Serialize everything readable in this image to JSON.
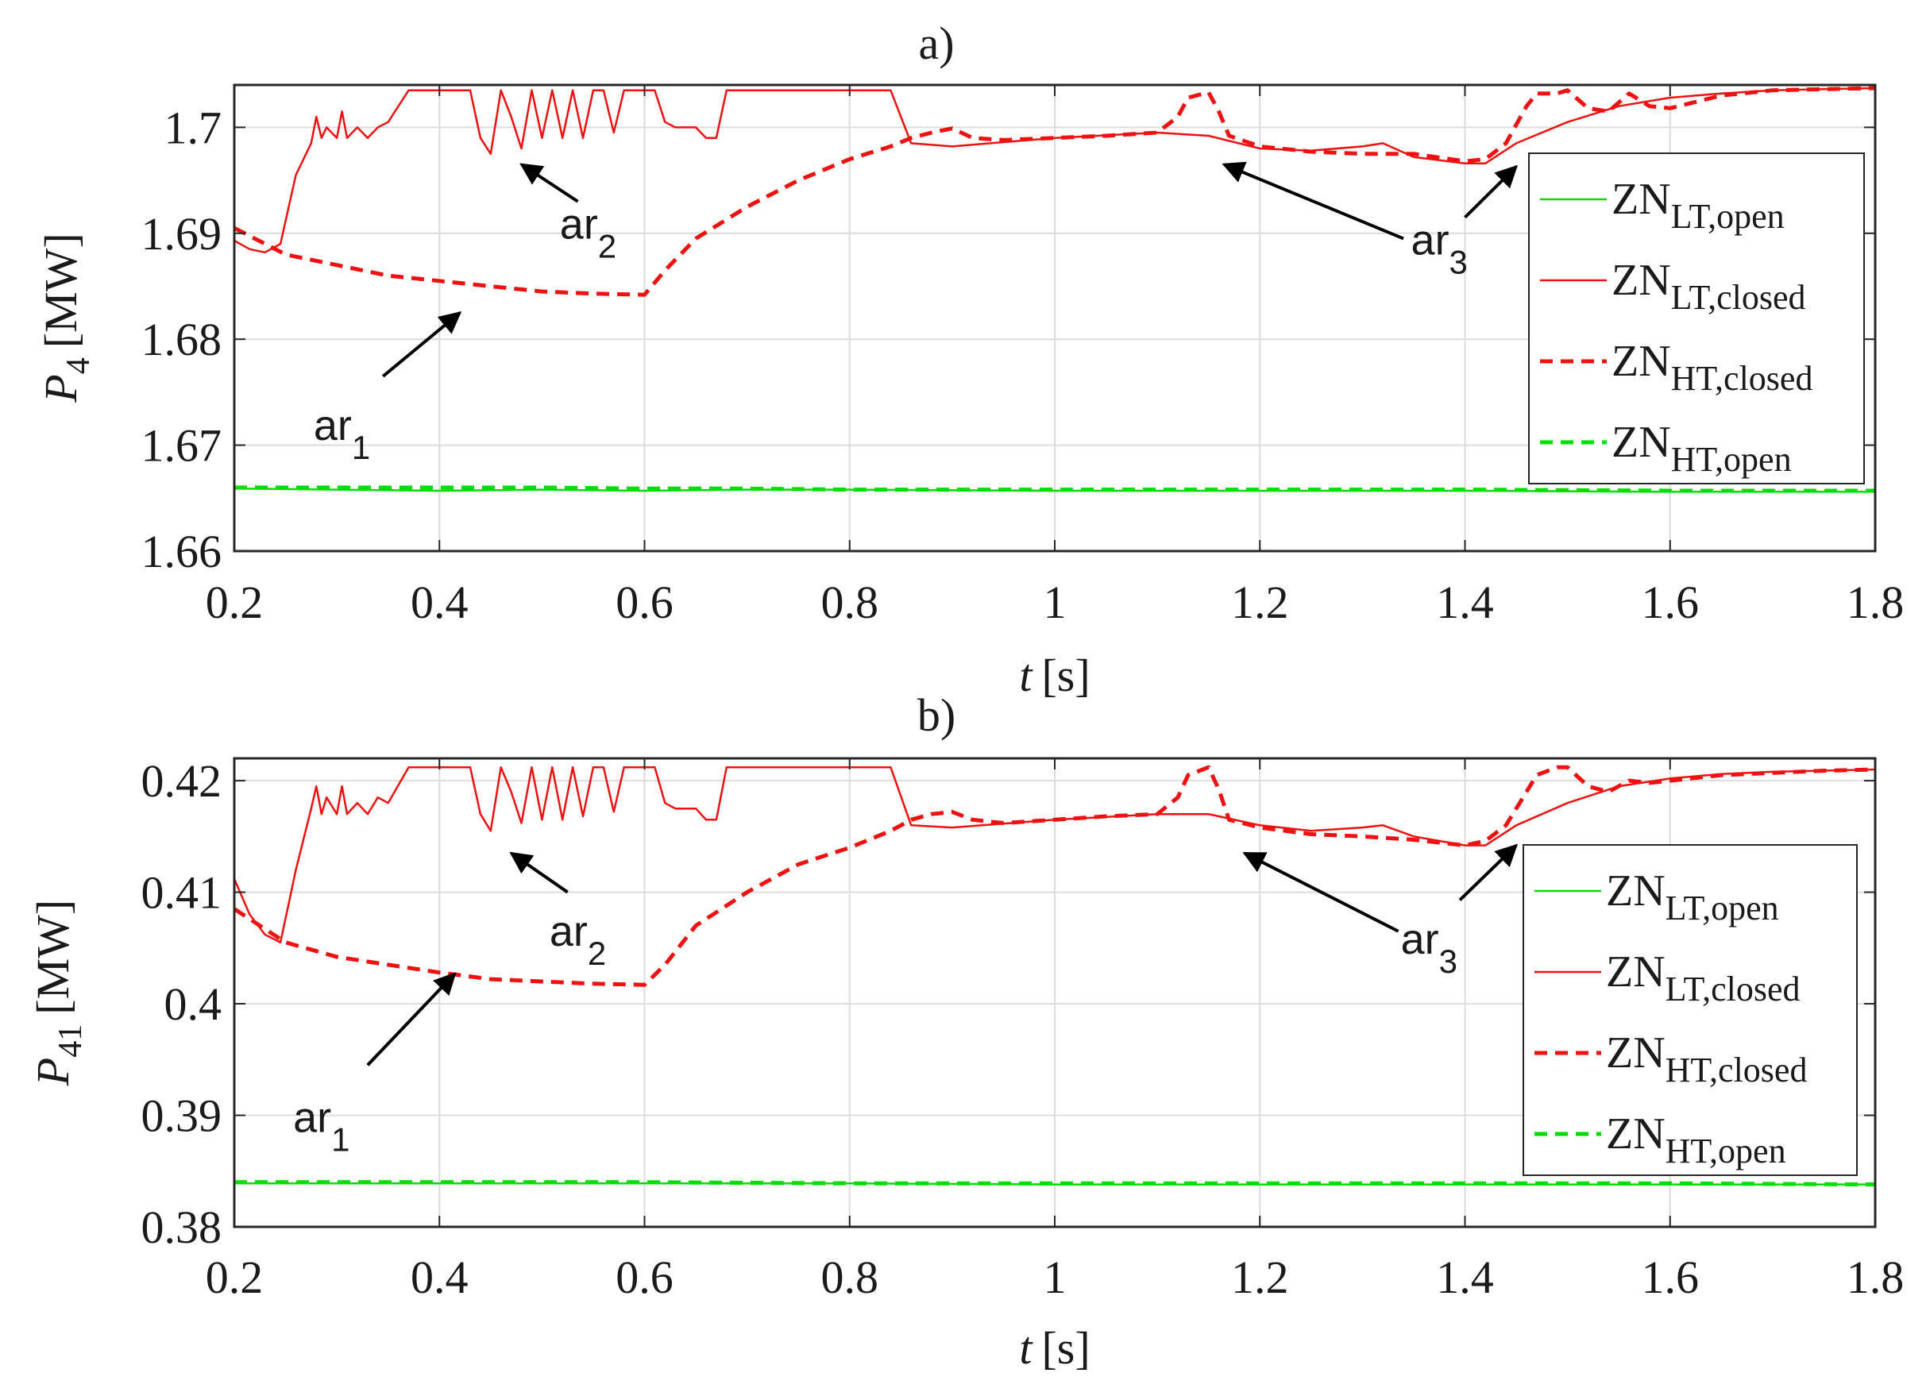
{
  "chart_data": [
    {
      "type": "line",
      "panel_label": "a)",
      "title": "a)",
      "ylabel_base": "P",
      "ylabel_sub": "4",
      "ylabel_unit": "[MW]",
      "xlabel_var": "t",
      "xlabel_unit": "[s]",
      "xlim": [
        0.2,
        1.8
      ],
      "ylim": [
        1.66,
        1.704
      ],
      "xticks": [
        0.2,
        0.4,
        0.6,
        0.8,
        1,
        1.2,
        1.4,
        1.6,
        1.8
      ],
      "xtick_labels": [
        "0.2",
        "0.4",
        "0.6",
        "0.8",
        "1",
        "1.2",
        "1.4",
        "1.6",
        "1.8"
      ],
      "yticks": [
        1.66,
        1.67,
        1.68,
        1.69,
        1.7
      ],
      "ytick_labels": [
        "1.66",
        "1.67",
        "1.68",
        "1.69",
        "1.7"
      ],
      "grid": true,
      "legend_position": "right",
      "series": [
        {
          "name": "ZN_LT,open",
          "label_base": "ZN",
          "label_sub": "LT,open",
          "color": "#00dd00",
          "style": "solid",
          "x": [
            0.2,
            0.3,
            0.4,
            0.5,
            0.6,
            0.7,
            0.8,
            1.0,
            1.2,
            1.4,
            1.6,
            1.8
          ],
          "y": [
            1.6659,
            1.6658,
            1.6657,
            1.6658,
            1.6657,
            1.6658,
            1.6658,
            1.6657,
            1.6657,
            1.6657,
            1.6656,
            1.6656
          ]
        },
        {
          "name": "ZN_LT,closed",
          "label_base": "ZN",
          "label_sub": "LT,closed",
          "color": "#ee1111",
          "style": "solid",
          "x": [
            0.2,
            0.215,
            0.23,
            0.245,
            0.26,
            0.275,
            0.28,
            0.285,
            0.29,
            0.3,
            0.305,
            0.31,
            0.32,
            0.33,
            0.34,
            0.35,
            0.37,
            0.39,
            0.4,
            0.43,
            0.44,
            0.45,
            0.46,
            0.47,
            0.48,
            0.49,
            0.5,
            0.51,
            0.52,
            0.53,
            0.54,
            0.55,
            0.56,
            0.57,
            0.58,
            0.59,
            0.6,
            0.61,
            0.62,
            0.63,
            0.65,
            0.66,
            0.67,
            0.68,
            0.7,
            0.72,
            0.74,
            0.76,
            0.78,
            0.8,
            0.82,
            0.84,
            0.86,
            0.9,
            1.0,
            1.1,
            1.15,
            1.2,
            1.25,
            1.3,
            1.32,
            1.35,
            1.4,
            1.42,
            1.45,
            1.5,
            1.55,
            1.6,
            1.65,
            1.7,
            1.75,
            1.8
          ],
          "y": [
            1.6893,
            1.6885,
            1.6882,
            1.689,
            1.6955,
            1.6985,
            1.701,
            1.699,
            1.7,
            1.699,
            1.7015,
            1.699,
            1.7,
            1.699,
            1.7,
            1.7005,
            1.7035,
            1.7035,
            1.7035,
            1.7035,
            1.699,
            1.6975,
            1.7035,
            1.701,
            1.698,
            1.7035,
            1.699,
            1.7035,
            1.699,
            1.7035,
            1.699,
            1.7035,
            1.7035,
            1.6995,
            1.7035,
            1.7035,
            1.7035,
            1.7035,
            1.7005,
            1.7,
            1.7,
            1.699,
            1.699,
            1.7035,
            1.7035,
            1.7035,
            1.7035,
            1.7035,
            1.7035,
            1.7035,
            1.7035,
            1.7035,
            1.6985,
            1.6982,
            1.699,
            1.6995,
            1.6992,
            1.698,
            1.6978,
            1.6982,
            1.6985,
            1.6972,
            1.6966,
            1.6966,
            1.6985,
            1.7005,
            1.702,
            1.7028,
            1.7032,
            1.7035,
            1.7036,
            1.7037
          ]
        },
        {
          "name": "ZN_HT,closed",
          "label_base": "ZN",
          "label_sub": "HT,closed",
          "color": "#ee1111",
          "style": "dashed",
          "x": [
            0.2,
            0.25,
            0.3,
            0.35,
            0.4,
            0.45,
            0.5,
            0.55,
            0.6,
            0.62,
            0.65,
            0.7,
            0.75,
            0.8,
            0.84,
            0.86,
            0.88,
            0.9,
            0.92,
            0.95,
            1.0,
            1.05,
            1.1,
            1.12,
            1.13,
            1.15,
            1.16,
            1.17,
            1.2,
            1.25,
            1.3,
            1.35,
            1.4,
            1.42,
            1.44,
            1.46,
            1.47,
            1.49,
            1.5,
            1.52,
            1.54,
            1.56,
            1.58,
            1.6,
            1.65,
            1.7,
            1.75,
            1.8
          ],
          "y": [
            1.6905,
            1.688,
            1.687,
            1.686,
            1.6855,
            1.685,
            1.6845,
            1.6843,
            1.6842,
            1.6865,
            1.6895,
            1.6925,
            1.695,
            1.697,
            1.6982,
            1.699,
            1.6995,
            1.6999,
            1.699,
            1.6988,
            1.699,
            1.6992,
            1.6995,
            1.701,
            1.7028,
            1.7033,
            1.7015,
            1.6992,
            1.6982,
            1.6977,
            1.6975,
            1.6975,
            1.6968,
            1.697,
            1.6985,
            1.702,
            1.7032,
            1.7032,
            1.7035,
            1.7018,
            1.7015,
            1.7032,
            1.702,
            1.7018,
            1.703,
            1.7035,
            1.7036,
            1.7037
          ]
        },
        {
          "name": "ZN_HT,open",
          "label_base": "ZN",
          "label_sub": "HT,open",
          "color": "#00dd00",
          "style": "dashed",
          "x": [
            0.2,
            0.3,
            0.4,
            0.5,
            0.6,
            0.7,
            0.8,
            1.0,
            1.2,
            1.4,
            1.6,
            1.8
          ],
          "y": [
            1.666,
            1.666,
            1.666,
            1.666,
            1.6659,
            1.6659,
            1.6658,
            1.6658,
            1.6658,
            1.6658,
            1.6657,
            1.6657
          ]
        }
      ],
      "annotations": [
        {
          "id": "ar1",
          "text": "ar",
          "sub": "1",
          "text_at": [
            0.305,
            1.6705
          ],
          "arrow_from": [
            0.345,
            1.6765
          ],
          "arrow_to": [
            0.42,
            1.6825
          ]
        },
        {
          "id": "ar2",
          "text": "ar",
          "sub": "2",
          "text_at": [
            0.545,
            1.6895
          ],
          "arrow_from": [
            0.535,
            1.693
          ],
          "arrow_to": [
            0.48,
            1.6965
          ]
        },
        {
          "id": "ar3",
          "text": "ar",
          "sub": "3",
          "text_at": [
            1.375,
            1.688
          ],
          "arrow_from": [
            1.34,
            1.6895
          ],
          "arrow_to": [
            1.165,
            1.6965
          ]
        },
        {
          "id": "ar3b",
          "arrow_from": [
            1.4,
            1.6915
          ],
          "arrow_to": [
            1.45,
            1.6963
          ]
        }
      ]
    },
    {
      "type": "line",
      "panel_label": "b)",
      "title": "b)",
      "ylabel_base": "P",
      "ylabel_sub": "41",
      "ylabel_unit": "[MW]",
      "xlabel_var": "t",
      "xlabel_unit": "[s]",
      "xlim": [
        0.2,
        1.8
      ],
      "ylim": [
        0.38,
        0.422
      ],
      "xticks": [
        0.2,
        0.4,
        0.6,
        0.8,
        1,
        1.2,
        1.4,
        1.6,
        1.8
      ],
      "xtick_labels": [
        "0.2",
        "0.4",
        "0.6",
        "0.8",
        "1",
        "1.2",
        "1.4",
        "1.6",
        "1.8"
      ],
      "yticks": [
        0.38,
        0.39,
        0.4,
        0.41,
        0.42
      ],
      "ytick_labels": [
        "0.38",
        "0.39",
        "0.4",
        "0.41",
        "0.42"
      ],
      "grid": true,
      "legend_position": "right",
      "series": [
        {
          "name": "ZN_LT,open",
          "label_base": "ZN",
          "label_sub": "LT,open",
          "color": "#00dd00",
          "style": "solid",
          "x": [
            0.2,
            0.4,
            0.6,
            0.8,
            1.0,
            1.2,
            1.4,
            1.6,
            1.8
          ],
          "y": [
            0.3839,
            0.3839,
            0.3839,
            0.3839,
            0.3838,
            0.3838,
            0.3838,
            0.3838,
            0.3838
          ]
        },
        {
          "name": "ZN_LT,closed",
          "label_base": "ZN",
          "label_sub": "LT,closed",
          "color": "#ee1111",
          "style": "solid",
          "x": [
            0.2,
            0.215,
            0.23,
            0.245,
            0.26,
            0.275,
            0.28,
            0.285,
            0.29,
            0.3,
            0.305,
            0.31,
            0.32,
            0.33,
            0.34,
            0.35,
            0.37,
            0.39,
            0.4,
            0.43,
            0.44,
            0.45,
            0.46,
            0.47,
            0.48,
            0.49,
            0.5,
            0.51,
            0.52,
            0.53,
            0.54,
            0.55,
            0.56,
            0.57,
            0.58,
            0.59,
            0.6,
            0.61,
            0.62,
            0.63,
            0.65,
            0.66,
            0.67,
            0.68,
            0.7,
            0.72,
            0.74,
            0.76,
            0.78,
            0.8,
            0.82,
            0.84,
            0.86,
            0.9,
            1.0,
            1.1,
            1.15,
            1.2,
            1.25,
            1.3,
            1.32,
            1.35,
            1.4,
            1.42,
            1.45,
            1.5,
            1.55,
            1.6,
            1.65,
            1.7,
            1.75,
            1.8
          ],
          "y": [
            0.4112,
            0.408,
            0.4062,
            0.4055,
            0.412,
            0.4175,
            0.4195,
            0.417,
            0.4185,
            0.417,
            0.4195,
            0.417,
            0.418,
            0.417,
            0.4185,
            0.418,
            0.4212,
            0.4212,
            0.4212,
            0.4212,
            0.417,
            0.4155,
            0.4212,
            0.419,
            0.4162,
            0.4212,
            0.4165,
            0.4212,
            0.4165,
            0.4212,
            0.4168,
            0.4212,
            0.4212,
            0.4172,
            0.4212,
            0.4212,
            0.4212,
            0.4212,
            0.418,
            0.4175,
            0.4175,
            0.4165,
            0.4165,
            0.4212,
            0.4212,
            0.4212,
            0.4212,
            0.4212,
            0.4212,
            0.4212,
            0.4212,
            0.4212,
            0.416,
            0.4158,
            0.4165,
            0.417,
            0.417,
            0.416,
            0.4155,
            0.4158,
            0.416,
            0.415,
            0.4142,
            0.4142,
            0.416,
            0.418,
            0.4195,
            0.4202,
            0.4206,
            0.4208,
            0.4209,
            0.421
          ]
        },
        {
          "name": "ZN_HT,closed",
          "label_base": "ZN",
          "label_sub": "HT,closed",
          "color": "#ee1111",
          "style": "dashed",
          "x": [
            0.2,
            0.25,
            0.3,
            0.35,
            0.4,
            0.45,
            0.5,
            0.55,
            0.6,
            0.62,
            0.65,
            0.7,
            0.75,
            0.8,
            0.84,
            0.86,
            0.88,
            0.9,
            0.92,
            0.95,
            1.0,
            1.05,
            1.1,
            1.12,
            1.13,
            1.15,
            1.16,
            1.17,
            1.2,
            1.25,
            1.3,
            1.35,
            1.4,
            1.42,
            1.44,
            1.46,
            1.47,
            1.49,
            1.5,
            1.52,
            1.54,
            1.56,
            1.58,
            1.6,
            1.65,
            1.7,
            1.75,
            1.8
          ],
          "y": [
            0.4085,
            0.4055,
            0.4042,
            0.4035,
            0.4028,
            0.4022,
            0.402,
            0.4018,
            0.4017,
            0.4035,
            0.407,
            0.41,
            0.4125,
            0.414,
            0.4155,
            0.4165,
            0.417,
            0.4172,
            0.4165,
            0.4162,
            0.4165,
            0.4168,
            0.417,
            0.4185,
            0.4205,
            0.4212,
            0.4192,
            0.4165,
            0.4158,
            0.4152,
            0.415,
            0.4147,
            0.4142,
            0.4146,
            0.416,
            0.419,
            0.4205,
            0.4212,
            0.4212,
            0.4195,
            0.419,
            0.42,
            0.4198,
            0.42,
            0.4205,
            0.4207,
            0.4209,
            0.421
          ]
        },
        {
          "name": "ZN_HT,open",
          "label_base": "ZN",
          "label_sub": "HT,open",
          "color": "#00dd00",
          "style": "dashed",
          "x": [
            0.2,
            0.4,
            0.6,
            0.8,
            1.0,
            1.2,
            1.4,
            1.6,
            1.8
          ],
          "y": [
            0.384,
            0.384,
            0.384,
            0.3839,
            0.3839,
            0.3839,
            0.3839,
            0.3839,
            0.3838
          ]
        }
      ],
      "annotations": [
        {
          "id": "ar1",
          "text": "ar",
          "sub": "1",
          "text_at": [
            0.285,
            0.3885
          ],
          "arrow_from": [
            0.33,
            0.3945
          ],
          "arrow_to": [
            0.415,
            0.4027
          ]
        },
        {
          "id": "ar2",
          "text": "ar",
          "sub": "2",
          "text_at": [
            0.535,
            0.4052
          ],
          "arrow_from": [
            0.525,
            0.41
          ],
          "arrow_to": [
            0.47,
            0.4135
          ]
        },
        {
          "id": "ar3",
          "text": "ar",
          "sub": "3",
          "text_at": [
            1.365,
            0.4045
          ],
          "arrow_from": [
            1.335,
            0.4065
          ],
          "arrow_to": [
            1.185,
            0.4135
          ]
        },
        {
          "id": "ar3b",
          "arrow_from": [
            1.395,
            0.4093
          ],
          "arrow_to": [
            1.45,
            0.4142
          ]
        }
      ]
    }
  ]
}
